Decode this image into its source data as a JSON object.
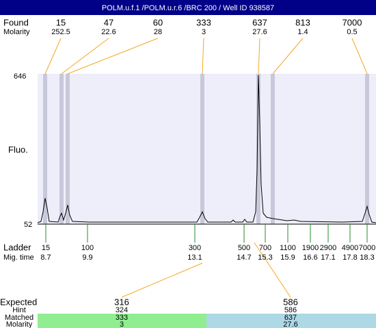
{
  "header": {
    "title": "POLM.u.f.1 /POLM.u.r.6 /BRC 200 / Well ID 938587"
  },
  "found": {
    "label": "Found",
    "values": [
      15,
      47,
      60,
      333,
      637,
      813,
      7000
    ]
  },
  "molarity": {
    "label": "Molarity",
    "values": [
      252.5,
      22.6,
      28,
      3,
      27.6,
      1.4,
      0.5
    ]
  },
  "y_axis": {
    "label": "Fluo.",
    "max": 646,
    "min": 52
  },
  "ladder": {
    "label": "Ladder",
    "values": [
      15,
      100,
      300,
      500,
      700,
      1100,
      1900,
      2900,
      4900,
      7000
    ]
  },
  "mig_time": {
    "label": "Mig. time",
    "values": [
      8.7,
      9.9,
      13.1,
      14.7,
      15.3,
      15.9,
      16.6,
      17.1,
      17.8,
      18.3
    ]
  },
  "summary": {
    "labels": [
      "Expected",
      "Hint",
      "Matched",
      "Molarity"
    ],
    "columns": [
      {
        "expected": 316,
        "hint": 324,
        "matched": 333,
        "molarity": 3
      },
      {
        "expected": 586,
        "hint": 586,
        "matched": 637,
        "molarity": 27.6
      }
    ]
  }
}
